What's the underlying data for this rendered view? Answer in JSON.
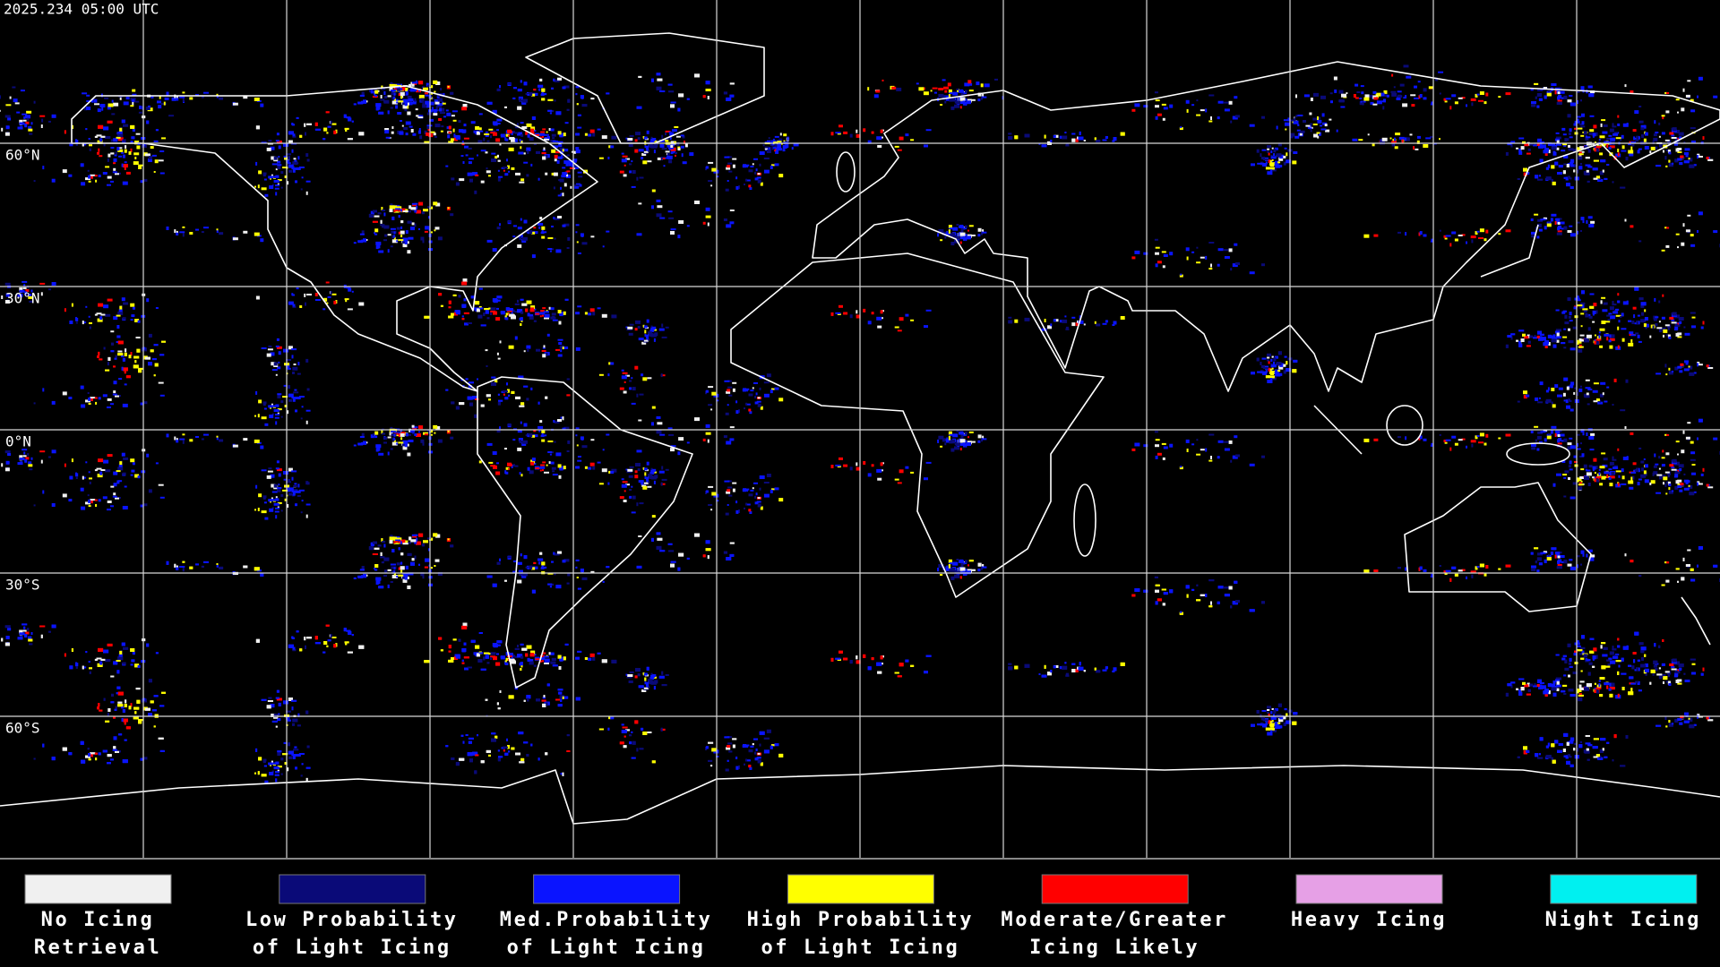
{
  "header": {
    "timestamp": "2025.234 05:00 UTC"
  },
  "latitude_labels": [
    "60°N",
    "30°N",
    "0°N",
    "30°S",
    "60°S"
  ],
  "legend": [
    {
      "label": [
        "No Icing",
        "Retrieval"
      ],
      "color": "#f0f0f0"
    },
    {
      "label": [
        "Low Probability",
        "of Light Icing"
      ],
      "color": "#0a0a78"
    },
    {
      "label": [
        "Med.Probability",
        "of Light Icing"
      ],
      "color": "#0a14ff"
    },
    {
      "label": [
        "High Probability",
        "of Light Icing"
      ],
      "color": "#ffff00"
    },
    {
      "label": [
        "Moderate/Greater",
        "Icing Likely"
      ],
      "color": "#ff0000"
    },
    {
      "label": [
        "Heavy Icing"
      ],
      "color": "#e6a0e6"
    },
    {
      "label": [
        "Night Icing"
      ],
      "color": "#00f0f0"
    }
  ]
}
